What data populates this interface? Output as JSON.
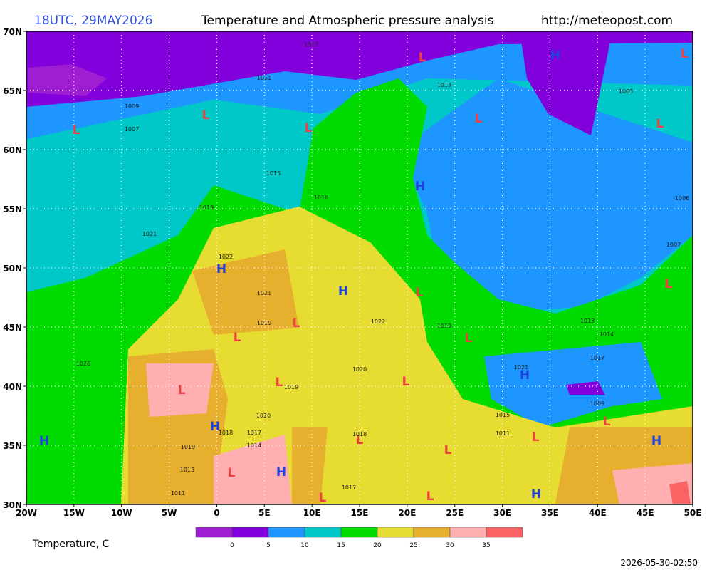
{
  "header": {
    "time": "18UTC, 29MAY2026",
    "title": "Temperature and Atmospheric pressure analysis",
    "url": "http://meteopost.com"
  },
  "map": {
    "xlim": [
      -20,
      50
    ],
    "ylim": [
      30,
      70
    ],
    "grid": true,
    "xticks": [
      {
        "value": -20,
        "label": "20W"
      },
      {
        "value": -15,
        "label": "15W"
      },
      {
        "value": -10,
        "label": "10W"
      },
      {
        "value": -5,
        "label": "5W"
      },
      0,
      {
        "value": 5,
        "label": "5E"
      },
      {
        "value": 10,
        "label": "10E"
      },
      {
        "value": 15,
        "label": "15E"
      },
      {
        "value": 20,
        "label": "20E"
      },
      {
        "value": 25,
        "label": "25E"
      },
      {
        "value": 30,
        "label": "30E"
      },
      {
        "value": 35,
        "label": "35E"
      },
      {
        "value": 40,
        "label": "40E"
      },
      {
        "value": 45,
        "label": "45E"
      },
      {
        "value": 50,
        "label": "50E"
      }
    ],
    "yticks": [
      {
        "value": 30,
        "label": "30N"
      },
      {
        "value": 35,
        "label": "35N"
      },
      {
        "value": 40,
        "label": "40N"
      },
      {
        "value": 45,
        "label": "45N"
      },
      {
        "value": 50,
        "label": "50N"
      },
      {
        "value": 55,
        "label": "55N"
      },
      {
        "value": 60,
        "label": "60N"
      },
      {
        "value": 65,
        "label": "65N"
      },
      {
        "value": 70,
        "label": "70N"
      }
    ],
    "pressure_centers": [
      "L",
      "L",
      "L",
      "L",
      "L",
      "H",
      "L",
      "L",
      "H",
      "H",
      "H",
      "L",
      "L",
      "L",
      "L",
      "L",
      "H",
      "L",
      "L",
      "L",
      "L",
      "H",
      "H",
      "H",
      "L",
      "L",
      "L",
      "H",
      "L",
      "L",
      "L",
      "H"
    ],
    "isobar_labels": [
      1026,
      1021,
      1019,
      1021,
      1019,
      1022,
      1018,
      1017,
      1014,
      1020,
      1019,
      1020,
      1018,
      1017,
      1013,
      1011,
      1019,
      1007,
      1009,
      1011,
      1012,
      1013,
      1003,
      1006,
      1007,
      1013,
      1014,
      1017,
      1009,
      1011,
      1015,
      1021,
      1019,
      1022,
      1016,
      1015
    ]
  },
  "legend": {
    "title": "Temperature, C",
    "colors": [
      "#a01ed2",
      "#8200dc",
      "#1e96ff",
      "#00c8c8",
      "#00dc00",
      "#e6dc32",
      "#e6af2d",
      "#ffafaf",
      "#fa6464"
    ],
    "ticks": [
      0,
      5,
      10,
      15,
      20,
      25,
      30,
      35
    ]
  },
  "footer": {
    "timestamp": "2026-05-30-02:50"
  }
}
